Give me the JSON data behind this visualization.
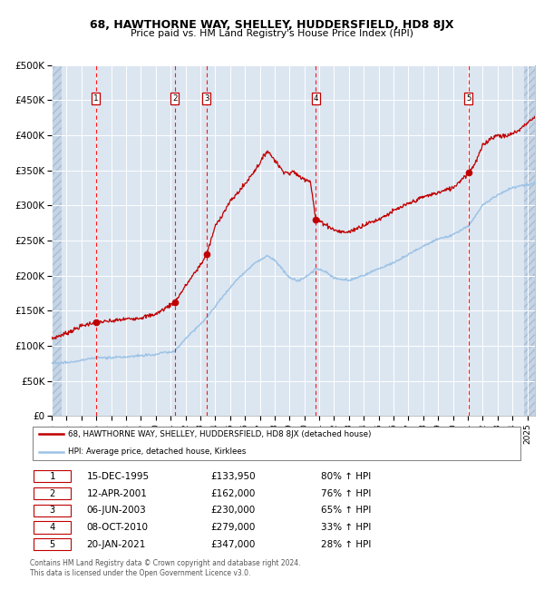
{
  "title1": "68, HAWTHORNE WAY, SHELLEY, HUDDERSFIELD, HD8 8JX",
  "title2": "Price paid vs. HM Land Registry's House Price Index (HPI)",
  "red_label": "68, HAWTHORNE WAY, SHELLEY, HUDDERSFIELD, HD8 8JX (detached house)",
  "blue_label": "HPI: Average price, detached house, Kirklees",
  "footnote": "Contains HM Land Registry data © Crown copyright and database right 2024.\nThis data is licensed under the Open Government Licence v3.0.",
  "sale_points": [
    {
      "num": 1,
      "date_label": "15-DEC-1995",
      "price_label": "£133,950",
      "hpi_label": "80% ↑ HPI",
      "year": 1995.96,
      "price": 133950
    },
    {
      "num": 2,
      "date_label": "12-APR-2001",
      "price_label": "£162,000",
      "hpi_label": "76% ↑ HPI",
      "year": 2001.28,
      "price": 162000
    },
    {
      "num": 3,
      "date_label": "06-JUN-2003",
      "price_label": "£230,000",
      "hpi_label": "65% ↑ HPI",
      "year": 2003.43,
      "price": 230000
    },
    {
      "num": 4,
      "date_label": "08-OCT-2010",
      "price_label": "£279,000",
      "hpi_label": "33% ↑ HPI",
      "year": 2010.77,
      "price": 279000
    },
    {
      "num": 5,
      "date_label": "20-JAN-2021",
      "price_label": "£347,000",
      "hpi_label": "28% ↑ HPI",
      "year": 2021.05,
      "price": 347000
    }
  ],
  "ylim": [
    0,
    500000
  ],
  "xlim": [
    1993.0,
    2025.5
  ],
  "yticks": [
    0,
    50000,
    100000,
    150000,
    200000,
    250000,
    300000,
    350000,
    400000,
    450000,
    500000
  ],
  "ytick_labels": [
    "£0",
    "£50K",
    "£100K",
    "£150K",
    "£200K",
    "£250K",
    "£300K",
    "£350K",
    "£400K",
    "£450K",
    "£500K"
  ],
  "bg_color": "#dce6f1",
  "hatch_color": "#c5d5e8",
  "grid_color": "#ffffff",
  "red_color": "#c00000",
  "blue_color": "#9dc3e6",
  "dashed_line_color": "#ff0000",
  "hatch_left_end": 1993.7,
  "hatch_right_start": 2024.75
}
